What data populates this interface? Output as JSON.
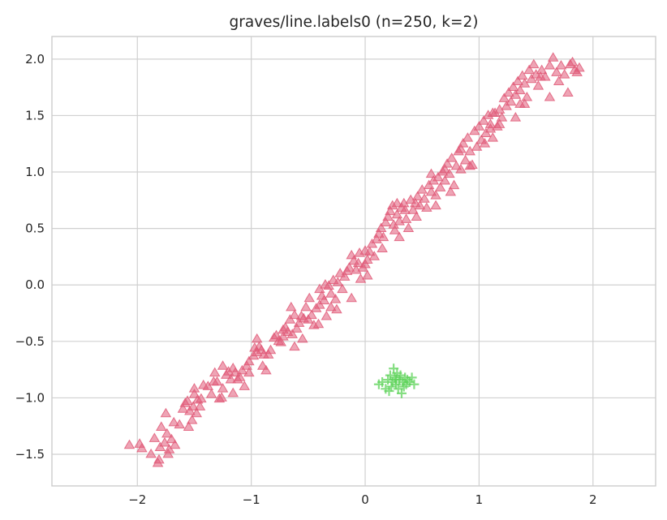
{
  "chart_data": {
    "type": "scatter",
    "title": "graves/line.labels0 (n=250, k=2)",
    "xlabel": "",
    "ylabel": "",
    "xlim": [
      -2.75,
      2.55
    ],
    "ylim": [
      -1.78,
      2.2
    ],
    "x_ticks": [
      -2,
      -1,
      0,
      1,
      2
    ],
    "x_tick_labels": [
      "−2",
      "−1",
      "0",
      "1",
      "2"
    ],
    "y_ticks": [
      -1.5,
      -1.0,
      -0.5,
      0.0,
      0.5,
      1.0,
      1.5,
      2.0
    ],
    "y_tick_labels": [
      "−1.5",
      "−1.0",
      "−0.5",
      "0.0",
      "0.5",
      "1.0",
      "1.5",
      "2.0"
    ],
    "grid": true,
    "legend": "none",
    "series": [
      {
        "marker": "triangle",
        "color": "#e05a78",
        "points": [
          [
            -2.07,
            -1.42
          ],
          [
            -1.98,
            -1.41
          ],
          [
            -1.96,
            -1.45
          ],
          [
            -1.88,
            -1.5
          ],
          [
            -1.82,
            -1.58
          ],
          [
            -1.81,
            -1.55
          ],
          [
            -1.8,
            -1.44
          ],
          [
            -1.79,
            -1.26
          ],
          [
            -1.76,
            -1.4
          ],
          [
            -1.75,
            -1.14
          ],
          [
            -1.73,
            -1.5
          ],
          [
            -1.72,
            -1.46
          ],
          [
            -1.7,
            -1.37
          ],
          [
            -1.68,
            -1.22
          ],
          [
            -1.67,
            -1.42
          ],
          [
            -1.63,
            -1.24
          ],
          [
            -1.58,
            -1.05
          ],
          [
            -1.56,
            -1.03
          ],
          [
            -1.55,
            -1.26
          ],
          [
            -1.54,
            -1.12
          ],
          [
            -1.52,
            -1.2
          ],
          [
            -1.51,
            -1.08
          ],
          [
            -1.5,
            -0.97
          ],
          [
            -1.48,
            -1.14
          ],
          [
            -1.47,
            -1.02
          ],
          [
            -1.44,
            -1.01
          ],
          [
            -1.42,
            -0.89
          ],
          [
            -1.38,
            -0.9
          ],
          [
            -1.35,
            -0.97
          ],
          [
            -1.33,
            -0.86
          ],
          [
            -1.3,
            -0.86
          ],
          [
            -1.28,
            -1.01
          ],
          [
            -1.26,
            -1.0
          ],
          [
            -1.25,
            -0.92
          ],
          [
            -1.22,
            -0.8
          ],
          [
            -1.2,
            -0.77
          ],
          [
            -1.18,
            -0.84
          ],
          [
            -1.16,
            -0.74
          ],
          [
            -1.14,
            -0.78
          ],
          [
            -1.12,
            -0.84
          ],
          [
            -1.1,
            -0.82
          ],
          [
            -1.08,
            -0.76
          ],
          [
            -1.06,
            -0.9
          ],
          [
            -1.04,
            -0.72
          ],
          [
            -1.02,
            -0.78
          ],
          [
            -0.98,
            -0.63
          ],
          [
            -0.97,
            -0.56
          ],
          [
            -0.95,
            -0.6
          ],
          [
            -0.93,
            -0.55
          ],
          [
            -0.91,
            -0.58
          ],
          [
            -0.89,
            -0.62
          ],
          [
            -0.87,
            -0.76
          ],
          [
            -0.85,
            -0.62
          ],
          [
            -0.83,
            -0.58
          ],
          [
            -0.8,
            -0.47
          ],
          [
            -0.78,
            -0.45
          ],
          [
            -0.76,
            -0.5
          ],
          [
            -0.74,
            -0.51
          ],
          [
            -0.72,
            -0.46
          ],
          [
            -0.7,
            -0.38
          ],
          [
            -0.68,
            -0.42
          ],
          [
            -0.66,
            -0.31
          ],
          [
            -0.64,
            -0.44
          ],
          [
            -0.62,
            -0.27
          ],
          [
            -0.6,
            -0.39
          ],
          [
            -0.58,
            -0.34
          ],
          [
            -0.56,
            -0.28
          ],
          [
            -0.54,
            -0.3
          ],
          [
            -0.52,
            -0.2
          ],
          [
            -0.5,
            -0.31
          ],
          [
            -0.49,
            -0.12
          ],
          [
            -0.47,
            -0.27
          ],
          [
            -0.45,
            -0.36
          ],
          [
            -0.43,
            -0.21
          ],
          [
            -0.41,
            -0.35
          ],
          [
            -0.4,
            -0.04
          ],
          [
            -0.38,
            -0.1
          ],
          [
            -0.36,
            -0.14
          ],
          [
            -0.34,
            -0.28
          ],
          [
            -0.32,
            -0.01
          ],
          [
            -0.3,
            -0.08
          ],
          [
            -0.28,
            0.04
          ],
          [
            -0.26,
            -0.13
          ],
          [
            -0.24,
            0.02
          ],
          [
            -0.22,
            0.1
          ],
          [
            -0.2,
            -0.04
          ],
          [
            -0.18,
            0.07
          ],
          [
            -0.16,
            0.12
          ],
          [
            -0.14,
            0.15
          ],
          [
            -0.12,
            -0.12
          ],
          [
            -0.1,
            0.21
          ],
          [
            -0.08,
            0.13
          ],
          [
            -0.06,
            0.19
          ],
          [
            -0.04,
            0.05
          ],
          [
            -0.02,
            0.15
          ],
          [
            0.0,
            0.3
          ],
          [
            0.02,
            0.22
          ],
          [
            0.04,
            0.29
          ],
          [
            0.06,
            0.36
          ],
          [
            0.08,
            0.25
          ],
          [
            0.1,
            0.4
          ],
          [
            0.12,
            0.45
          ],
          [
            0.14,
            0.5
          ],
          [
            0.16,
            0.42
          ],
          [
            0.18,
            0.55
          ],
          [
            0.2,
            0.6
          ],
          [
            0.22,
            0.65
          ],
          [
            0.24,
            0.7
          ],
          [
            0.25,
            0.53
          ],
          [
            0.26,
            0.48
          ],
          [
            0.28,
            0.62
          ],
          [
            0.3,
            0.56
          ],
          [
            0.32,
            0.68
          ],
          [
            0.34,
            0.72
          ],
          [
            0.36,
            0.58
          ],
          [
            0.38,
            0.5
          ],
          [
            0.4,
            0.75
          ],
          [
            0.42,
            0.66
          ],
          [
            0.44,
            0.72
          ],
          [
            0.46,
            0.78
          ],
          [
            0.48,
            0.7
          ],
          [
            0.5,
            0.84
          ],
          [
            0.52,
            0.76
          ],
          [
            0.54,
            0.68
          ],
          [
            0.56,
            0.88
          ],
          [
            0.58,
            0.82
          ],
          [
            0.6,
            0.92
          ],
          [
            0.62,
            0.79
          ],
          [
            0.64,
            0.95
          ],
          [
            0.66,
            0.86
          ],
          [
            0.68,
            1.0
          ],
          [
            0.7,
            0.92
          ],
          [
            0.72,
            1.07
          ],
          [
            0.74,
            0.98
          ],
          [
            0.76,
            1.12
          ],
          [
            0.78,
            0.88
          ],
          [
            0.8,
            1.05
          ],
          [
            0.82,
            1.18
          ],
          [
            0.84,
            1.02
          ],
          [
            0.86,
            1.25
          ],
          [
            0.88,
            1.1
          ],
          [
            0.9,
            1.3
          ],
          [
            0.92,
            1.18
          ],
          [
            0.94,
            1.06
          ],
          [
            0.96,
            1.36
          ],
          [
            0.98,
            1.22
          ],
          [
            1.0,
            1.4
          ],
          [
            1.02,
            1.28
          ],
          [
            1.04,
            1.45
          ],
          [
            1.06,
            1.34
          ],
          [
            1.08,
            1.5
          ],
          [
            1.1,
            1.42
          ],
          [
            1.12,
            1.3
          ],
          [
            1.14,
            1.52
          ],
          [
            1.16,
            1.4
          ],
          [
            1.18,
            1.55
          ],
          [
            1.2,
            1.48
          ],
          [
            1.22,
            1.65
          ],
          [
            1.24,
            1.58
          ],
          [
            1.26,
            1.7
          ],
          [
            1.28,
            1.62
          ],
          [
            1.3,
            1.75
          ],
          [
            1.32,
            1.68
          ],
          [
            1.34,
            1.8
          ],
          [
            1.36,
            1.72
          ],
          [
            1.38,
            1.85
          ],
          [
            1.4,
            1.78
          ],
          [
            1.42,
            1.66
          ],
          [
            1.44,
            1.9
          ],
          [
            1.46,
            1.82
          ],
          [
            1.48,
            1.95
          ],
          [
            1.5,
            1.86
          ],
          [
            1.52,
            1.76
          ],
          [
            1.55,
            1.9
          ],
          [
            1.58,
            1.84
          ],
          [
            1.62,
            1.94
          ],
          [
            1.65,
            2.01
          ],
          [
            1.68,
            1.88
          ],
          [
            1.7,
            1.8
          ],
          [
            1.72,
            1.94
          ],
          [
            1.75,
            1.86
          ],
          [
            1.78,
            1.7
          ],
          [
            1.8,
            1.95
          ],
          [
            1.82,
            1.97
          ],
          [
            1.84,
            1.9
          ],
          [
            1.86,
            1.88
          ],
          [
            1.88,
            1.92
          ],
          [
            1.62,
            1.66
          ],
          [
            1.4,
            1.6
          ],
          [
            1.32,
            1.48
          ],
          [
            1.18,
            1.42
          ],
          [
            1.05,
            1.25
          ],
          [
            0.92,
            1.05
          ],
          [
            0.75,
            0.82
          ],
          [
            0.62,
            0.7
          ],
          [
            0.45,
            0.6
          ],
          [
            0.3,
            0.42
          ],
          [
            0.15,
            0.32
          ],
          [
            0.02,
            0.08
          ],
          [
            -0.12,
            0.26
          ],
          [
            -0.25,
            -0.22
          ],
          [
            -0.4,
            -0.18
          ],
          [
            -0.55,
            -0.48
          ],
          [
            -0.72,
            -0.4
          ],
          [
            -0.9,
            -0.72
          ],
          [
            -1.02,
            -0.68
          ],
          [
            -1.16,
            -0.96
          ],
          [
            -1.32,
            -0.78
          ],
          [
            -1.45,
            -1.08
          ],
          [
            -1.6,
            -1.1
          ],
          [
            -1.74,
            -1.32
          ],
          [
            -1.85,
            -1.36
          ],
          [
            -1.5,
            -0.92
          ],
          [
            -1.25,
            -0.72
          ],
          [
            -0.95,
            -0.48
          ],
          [
            -0.65,
            -0.2
          ],
          [
            -0.35,
            0.0
          ],
          [
            -0.05,
            0.28
          ],
          [
            0.28,
            0.72
          ],
          [
            0.58,
            0.98
          ],
          [
            0.84,
            1.2
          ],
          [
            1.1,
            1.38
          ],
          [
            1.36,
            1.6
          ],
          [
            1.54,
            1.84
          ],
          [
            1.12,
            1.52
          ],
          [
            0.7,
            1.02
          ],
          [
            0.35,
            0.66
          ],
          [
            0.0,
            0.18
          ],
          [
            -0.3,
            -0.2
          ],
          [
            -0.62,
            -0.55
          ]
        ]
      },
      {
        "marker": "plus",
        "color": "#5ed35a",
        "points": [
          [
            0.12,
            -0.88
          ],
          [
            0.15,
            -0.86
          ],
          [
            0.18,
            -0.92
          ],
          [
            0.2,
            -0.84
          ],
          [
            0.22,
            -0.8
          ],
          [
            0.23,
            -0.9
          ],
          [
            0.24,
            -0.86
          ],
          [
            0.25,
            -0.74
          ],
          [
            0.26,
            -0.82
          ],
          [
            0.27,
            -0.88
          ],
          [
            0.28,
            -0.78
          ],
          [
            0.29,
            -0.92
          ],
          [
            0.3,
            -0.84
          ],
          [
            0.31,
            -0.8
          ],
          [
            0.32,
            -0.96
          ],
          [
            0.33,
            -0.86
          ],
          [
            0.34,
            -0.9
          ],
          [
            0.35,
            -0.82
          ],
          [
            0.36,
            -0.88
          ],
          [
            0.37,
            -0.84
          ],
          [
            0.39,
            -0.86
          ],
          [
            0.41,
            -0.82
          ],
          [
            0.43,
            -0.88
          ],
          [
            0.21,
            -0.94
          ],
          [
            0.27,
            -0.84
          ]
        ]
      }
    ]
  }
}
